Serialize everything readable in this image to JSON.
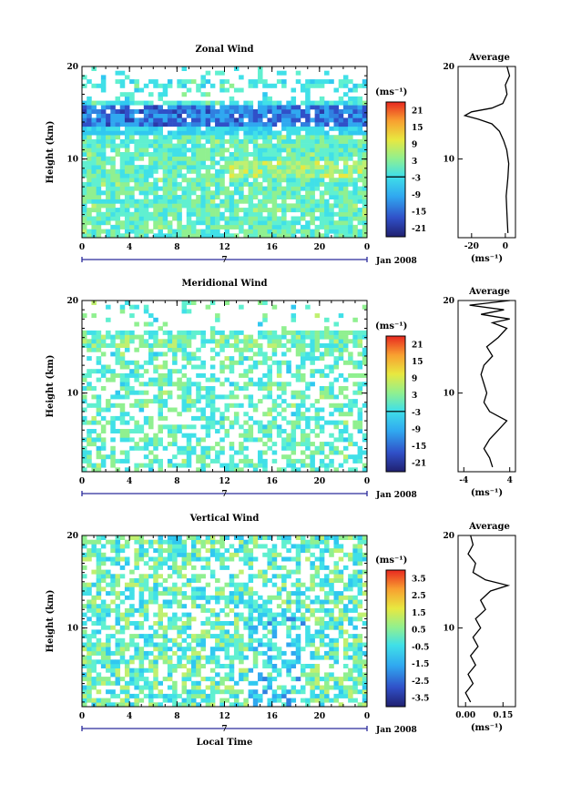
{
  "chart_data": [
    {
      "type": "heatmap",
      "title": "Zonal Wind",
      "ylabel": "Height (km)",
      "xlabel": "",
      "date_label": "Jan 2008",
      "day_label": "7",
      "x_ticks": [
        "0",
        "4",
        "8",
        "12",
        "16",
        "20",
        "0"
      ],
      "y_ticks": [
        "10",
        "20"
      ],
      "xlim": [
        0,
        24
      ],
      "ylim": [
        1.5,
        20
      ],
      "colorbar_unit": "(ms⁻¹)",
      "colorbar_ticks": [
        "21",
        "15",
        "9",
        "3",
        "-3",
        "-9",
        "-15",
        "-21"
      ],
      "colorbar_range": [
        -24,
        24
      ],
      "avg_title": "Average",
      "avg_xlabel": "(ms⁻¹)",
      "avg_x_ticks": [
        "-20",
        "0"
      ],
      "avg_xlim": [
        -28,
        6
      ],
      "avg_profile": [
        [
          2.0,
          1.5
        ],
        [
          4.0,
          1.0
        ],
        [
          6.0,
          0.5
        ],
        [
          8.0,
          1.5
        ],
        [
          9.5,
          2.0
        ],
        [
          11.0,
          0.8
        ],
        [
          12.0,
          -1.0
        ],
        [
          13.0,
          -3.5
        ],
        [
          13.8,
          -8.0
        ],
        [
          14.3,
          -16.0
        ],
        [
          14.7,
          -24.0
        ],
        [
          15.1,
          -20.0
        ],
        [
          15.5,
          -8.0
        ],
        [
          16.0,
          -1.5
        ],
        [
          17.0,
          1.0
        ],
        [
          18.0,
          0.0
        ],
        [
          19.0,
          2.5
        ],
        [
          20.0,
          1.0
        ]
      ]
    },
    {
      "type": "heatmap",
      "title": "Meridional Wind",
      "ylabel": "Height (km)",
      "xlabel": "",
      "date_label": "Jan 2008",
      "day_label": "7",
      "x_ticks": [
        "0",
        "4",
        "8",
        "12",
        "16",
        "20",
        "0"
      ],
      "y_ticks": [
        "10",
        "20"
      ],
      "xlim": [
        0,
        24
      ],
      "ylim": [
        1.5,
        20
      ],
      "colorbar_unit": "(ms⁻¹)",
      "colorbar_ticks": [
        "21",
        "15",
        "9",
        "3",
        "-3",
        "-9",
        "-15",
        "-21"
      ],
      "colorbar_range": [
        -24,
        24
      ],
      "avg_title": "Average",
      "avg_xlabel": "(ms⁻¹)",
      "avg_x_ticks": [
        "-4",
        "4"
      ],
      "avg_xlim": [
        -5,
        5
      ],
      "avg_profile": [
        [
          2.0,
          1.0
        ],
        [
          3.0,
          0.5
        ],
        [
          4.0,
          -0.5
        ],
        [
          5.0,
          0.5
        ],
        [
          6.0,
          2.0
        ],
        [
          7.0,
          3.5
        ],
        [
          8.0,
          0.5
        ],
        [
          9.0,
          -0.5
        ],
        [
          10.0,
          0.0
        ],
        [
          11.0,
          -0.5
        ],
        [
          12.0,
          -1.0
        ],
        [
          13.0,
          -0.5
        ],
        [
          14.0,
          1.0
        ],
        [
          15.0,
          0.0
        ],
        [
          16.0,
          2.0
        ],
        [
          17.0,
          3.5
        ],
        [
          17.6,
          1.0
        ],
        [
          18.0,
          4.0
        ],
        [
          18.5,
          -1.0
        ],
        [
          19.0,
          3.0
        ],
        [
          19.5,
          -3.0
        ],
        [
          20.0,
          4.0
        ]
      ]
    },
    {
      "type": "heatmap",
      "title": "Vertical Wind",
      "ylabel": "Height (km)",
      "xlabel": "Local Time",
      "date_label": "Jan 2008",
      "day_label": "7",
      "x_ticks": [
        "0",
        "4",
        "8",
        "12",
        "16",
        "20",
        "0"
      ],
      "y_ticks": [
        "10",
        "20"
      ],
      "xlim": [
        0,
        24
      ],
      "ylim": [
        1.5,
        20
      ],
      "colorbar_unit": "(ms⁻¹)",
      "colorbar_ticks": [
        "3.5",
        "2.5",
        "1.5",
        "0.5",
        "-0.5",
        "-1.5",
        "-2.5",
        "-3.5"
      ],
      "colorbar_range": [
        -4,
        4
      ],
      "avg_title": "Average",
      "avg_xlabel": "(ms⁻¹)",
      "avg_x_ticks": [
        "0.00",
        "0.15"
      ],
      "avg_xlim": [
        -0.03,
        0.2
      ],
      "avg_profile": [
        [
          2.0,
          0.02
        ],
        [
          3.0,
          0.0
        ],
        [
          4.0,
          0.03
        ],
        [
          5.0,
          0.01
        ],
        [
          6.0,
          0.04
        ],
        [
          7.0,
          0.02
        ],
        [
          8.0,
          0.05
        ],
        [
          9.0,
          0.03
        ],
        [
          10.0,
          0.06
        ],
        [
          11.0,
          0.04
        ],
        [
          12.0,
          0.08
        ],
        [
          13.0,
          0.06
        ],
        [
          14.0,
          0.1
        ],
        [
          14.6,
          0.17
        ],
        [
          15.2,
          0.08
        ],
        [
          16.0,
          0.03
        ],
        [
          17.0,
          0.04
        ],
        [
          18.0,
          0.01
        ],
        [
          19.0,
          0.03
        ],
        [
          20.0,
          0.02
        ]
      ]
    }
  ]
}
